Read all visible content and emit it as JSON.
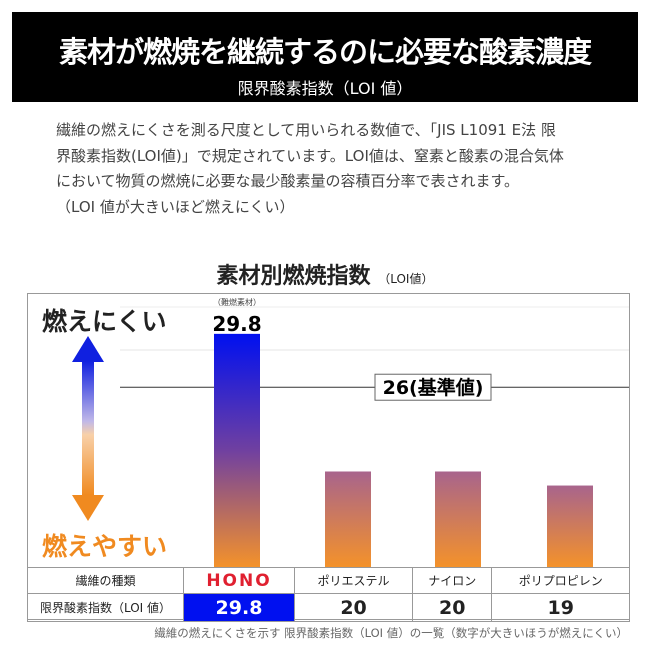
{
  "header": {
    "title": "素材が燃焼を継続するのに必要な酸素濃度",
    "subtitle": "限界酸素指数（LOI 値）"
  },
  "description": [
    "繊維の燃えにくさを測る尺度として用いられる数値で、「JIS L1091 E法 限",
    "界酸素指数(LOI値)」で規定されています。LOI値は、窒素と酸素の混合気体",
    "において物質の燃焼に必要な最少酸素量の容積百分率で表されます。",
    "（LOI 値が大きいほど燃えにくい）"
  ],
  "chart_data": {
    "type": "bar",
    "title": "素材別燃焼指数",
    "title_unit": "（LOI値）",
    "categories": [
      "HONO",
      "ポリエステル",
      "ナイロン",
      "ポリプロピレン"
    ],
    "values": [
      29.8,
      20,
      20,
      19
    ],
    "ylim": [
      13.2,
      31
    ],
    "reference_line": {
      "value": 26,
      "label": "26(基準値)"
    },
    "top_annotation": {
      "note": "（難燃素材）",
      "value_label": "29.8"
    },
    "side_labels": {
      "top": "燃えにくい",
      "bottom": "燃えやすい"
    },
    "colors": {
      "highlight": "#0010f0",
      "bar_top": "#a8648c",
      "bar_bottom": "#f4922a",
      "side_top": "#222222",
      "side_bottom": "#f08a20"
    }
  },
  "table": {
    "row_headers": [
      "繊維の種類",
      "限界酸素指数（LOI 値）"
    ],
    "names": [
      "HONO",
      "ポリエステル",
      "ナイロン",
      "ポリプロピレン"
    ],
    "values": [
      "29.8",
      "20",
      "20",
      "19"
    ]
  },
  "caption": "繊維の燃えにくさを示す 限界酸素指数（LOI 値）の一覧（数字が大きいほうが燃えにくい）"
}
